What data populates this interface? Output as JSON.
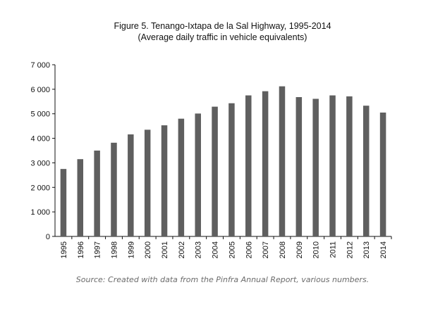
{
  "chart_data": {
    "type": "bar",
    "title": "Figure 5. Tenango-Ixtapa de la Sal Highway, 1995-2014",
    "subtitle": "(Average daily traffic in vehicle equivalents)",
    "xlabel": "",
    "ylabel": "",
    "categories": [
      "1995",
      "1996",
      "1997",
      "1998",
      "1999",
      "2000",
      "2001",
      "2002",
      "2003",
      "2004",
      "2005",
      "2006",
      "2007",
      "2008",
      "2009",
      "2010",
      "2011",
      "2012",
      "2013",
      "2014"
    ],
    "values": [
      2750,
      3150,
      3500,
      3820,
      4160,
      4350,
      4530,
      4800,
      5010,
      5290,
      5430,
      5750,
      5920,
      6120,
      5680,
      5610,
      5750,
      5710,
      5330,
      5050
    ],
    "yticks": [
      "0",
      "1 000",
      "2 000",
      "3 000",
      "4 000",
      "5 000",
      "6 000",
      "7 000"
    ],
    "ylim": [
      0,
      7000
    ],
    "grid": false,
    "bar_color": "#5f5f5f"
  },
  "source": "Source: Created with data from the Pinfra Annual Report, various numbers."
}
